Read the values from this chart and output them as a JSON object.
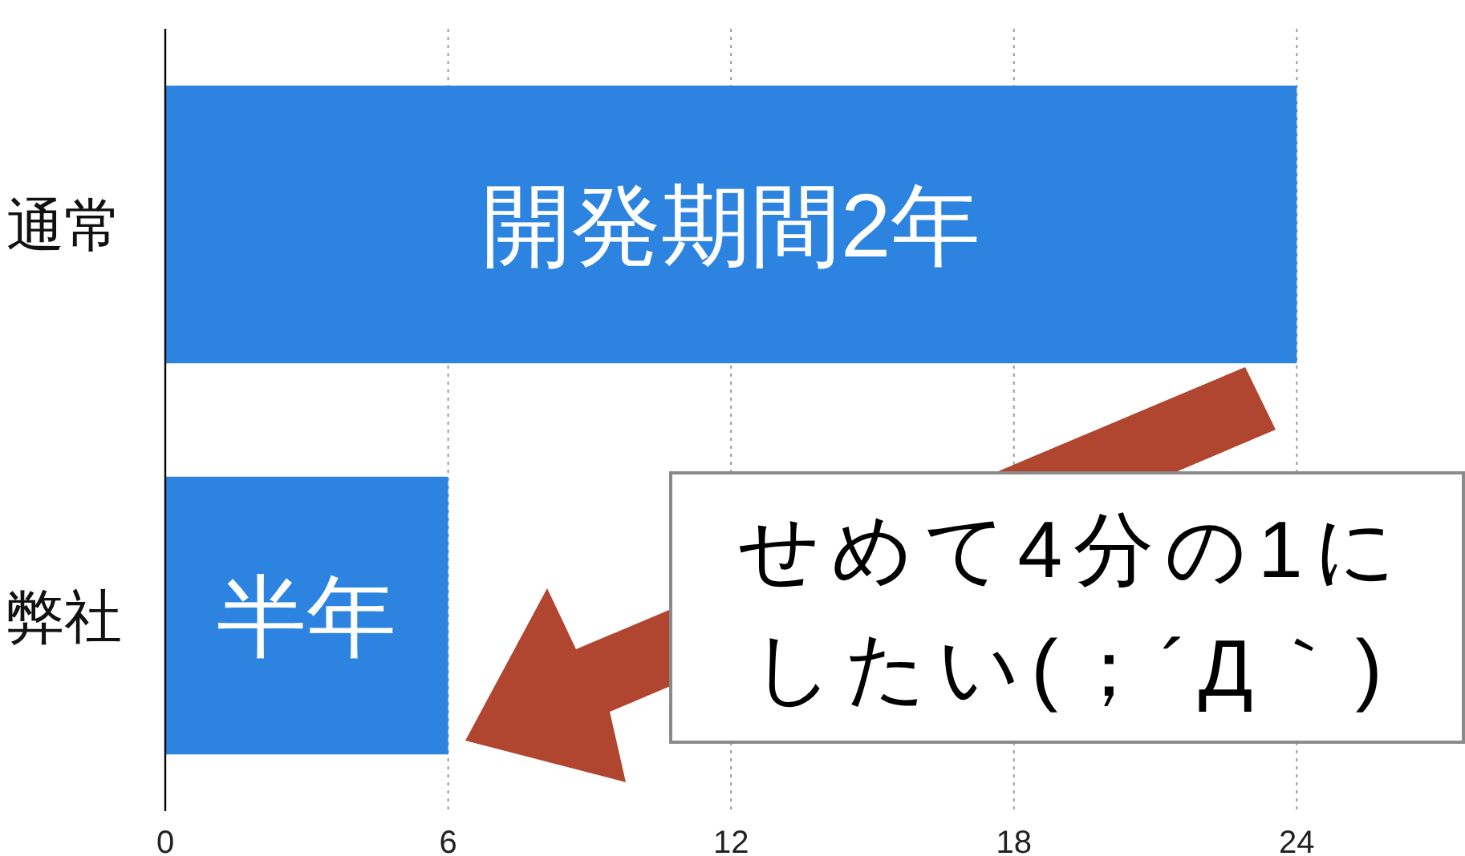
{
  "chart_data": {
    "type": "bar",
    "orientation": "horizontal",
    "categories": [
      "通常",
      "弊社"
    ],
    "values": [
      24,
      6
    ],
    "value_labels": [
      "開発期間2年",
      "半年"
    ],
    "color": "#2c84e0",
    "xlim": [
      0,
      27.5
    ],
    "xticks": [
      0,
      6,
      12,
      18,
      24
    ],
    "grid": "x",
    "annotations": [
      "せめて4分の1にしたい(；´Д｀)"
    ]
  }
}
